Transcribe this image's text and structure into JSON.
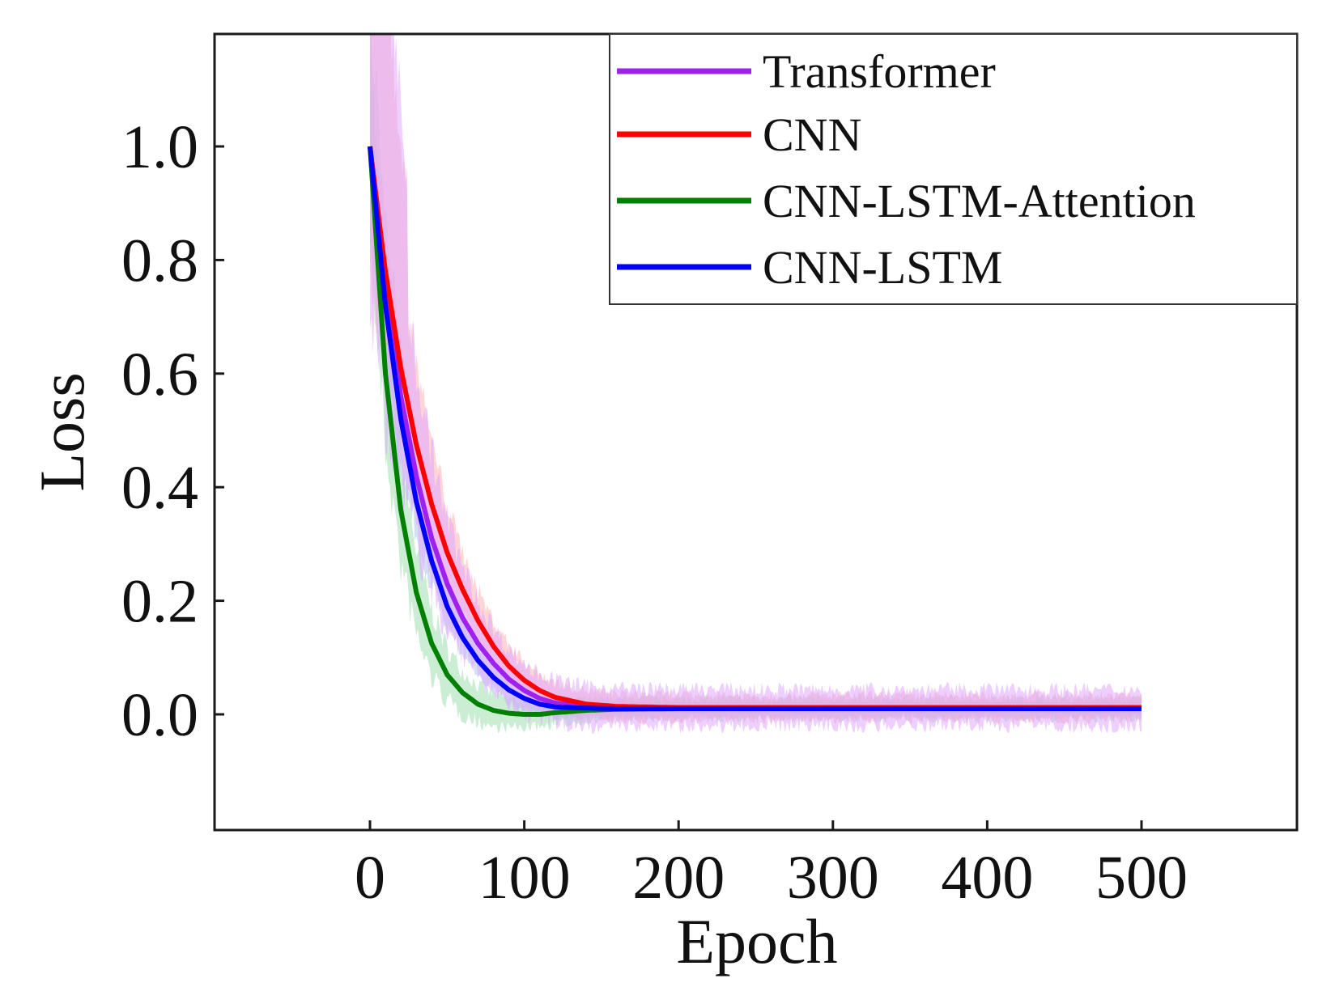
{
  "chart_data": {
    "type": "line",
    "title": "",
    "xlabel": "Epoch",
    "ylabel": "Loss",
    "xlim": [
      -100,
      600
    ],
    "ylim": [
      -0.2,
      1.2
    ],
    "xticks": [
      0,
      100,
      200,
      300,
      400,
      500
    ],
    "xtick_labels": [
      "0",
      "100",
      "200",
      "300",
      "400",
      "500"
    ],
    "yticks": [
      0.0,
      0.2,
      0.4,
      0.6,
      0.8,
      1.0
    ],
    "ytick_labels": [
      "0.0",
      "0.2",
      "0.4",
      "0.6",
      "0.8",
      "1.0"
    ],
    "grid": false,
    "legend_position": "top-right",
    "series": [
      {
        "name": "Transformer",
        "color": "#a020f0",
        "band_color": "#e0a8ff",
        "x": [
          0,
          10,
          20,
          30,
          40,
          50,
          60,
          70,
          80,
          90,
          100,
          110,
          120,
          140,
          160,
          200,
          300,
          400,
          500
        ],
        "values": [
          1.0,
          0.75,
          0.56,
          0.42,
          0.31,
          0.23,
          0.17,
          0.125,
          0.09,
          0.062,
          0.042,
          0.028,
          0.02,
          0.014,
          0.012,
          0.012,
          0.012,
          0.012,
          0.012
        ]
      },
      {
        "name": "CNN",
        "color": "#ff0000",
        "band_color": "#ffb3b3",
        "x": [
          0,
          10,
          20,
          30,
          40,
          50,
          60,
          70,
          80,
          90,
          100,
          110,
          120,
          140,
          160,
          200,
          300,
          400,
          500
        ],
        "values": [
          1.0,
          0.78,
          0.61,
          0.475,
          0.37,
          0.285,
          0.22,
          0.165,
          0.12,
          0.085,
          0.06,
          0.042,
          0.03,
          0.018,
          0.014,
          0.012,
          0.012,
          0.012,
          0.012
        ]
      },
      {
        "name": "CNN-LSTM-Attention",
        "color": "#008000",
        "band_color": "#9fdfb0",
        "x": [
          0,
          10,
          20,
          30,
          40,
          50,
          60,
          70,
          80,
          90,
          100,
          110,
          120,
          140,
          160,
          200,
          300,
          400,
          500
        ],
        "values": [
          1.0,
          0.6,
          0.36,
          0.215,
          0.125,
          0.07,
          0.038,
          0.018,
          0.007,
          0.002,
          0.0,
          0.0,
          0.003,
          0.007,
          0.009,
          0.01,
          0.01,
          0.01,
          0.01
        ]
      },
      {
        "name": "CNN-LSTM",
        "color": "#0000ff",
        "band_color": "#b0c4e8",
        "x": [
          0,
          10,
          20,
          30,
          40,
          50,
          60,
          70,
          80,
          90,
          100,
          110,
          120,
          140,
          160,
          200,
          300,
          400,
          500
        ],
        "values": [
          1.0,
          0.72,
          0.52,
          0.375,
          0.27,
          0.19,
          0.135,
          0.095,
          0.065,
          0.043,
          0.028,
          0.018,
          0.013,
          0.011,
          0.01,
          0.01,
          0.01,
          0.01,
          0.01
        ]
      }
    ]
  }
}
